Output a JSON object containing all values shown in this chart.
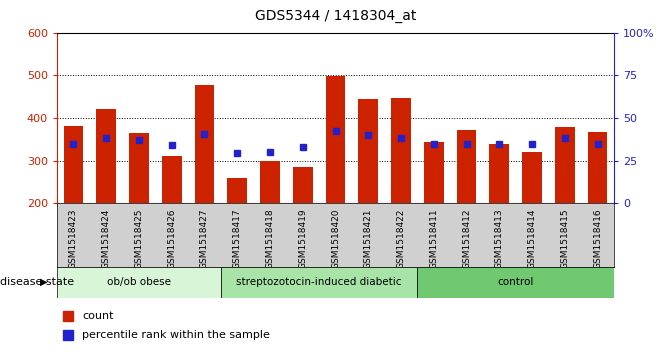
{
  "title": "GDS5344 / 1418304_at",
  "samples": [
    "GSM1518423",
    "GSM1518424",
    "GSM1518425",
    "GSM1518426",
    "GSM1518427",
    "GSM1518417",
    "GSM1518418",
    "GSM1518419",
    "GSM1518420",
    "GSM1518421",
    "GSM1518422",
    "GSM1518411",
    "GSM1518412",
    "GSM1518413",
    "GSM1518414",
    "GSM1518415",
    "GSM1518416"
  ],
  "count_values": [
    382,
    420,
    365,
    312,
    478,
    260,
    298,
    284,
    498,
    445,
    448,
    343,
    372,
    340,
    320,
    378,
    367
  ],
  "percentile_values": [
    338,
    354,
    348,
    337,
    362,
    318,
    320,
    332,
    370,
    360,
    354,
    338,
    338,
    338,
    338,
    352,
    340
  ],
  "groups": [
    {
      "label": "ob/ob obese",
      "start": 0,
      "end": 5
    },
    {
      "label": "streptozotocin-induced diabetic",
      "start": 5,
      "end": 11
    },
    {
      "label": "control",
      "start": 11,
      "end": 17
    }
  ],
  "group_colors": [
    "#d8f5d8",
    "#a8e4a8",
    "#70c870"
  ],
  "ylim": [
    200,
    600
  ],
  "y2lim": [
    0,
    100
  ],
  "yticks": [
    200,
    300,
    400,
    500,
    600
  ],
  "y2ticks": [
    0,
    25,
    50,
    75,
    100
  ],
  "y2ticklabels": [
    "0",
    "25",
    "50",
    "75",
    "100%"
  ],
  "bar_color": "#cc2200",
  "percentile_color": "#2222cc",
  "plot_bg": "#ffffff",
  "xlabel_bg": "#d0d0d0",
  "disease_state_label": "disease state",
  "legend_count": "count",
  "legend_percentile": "percentile rank within the sample",
  "grid_levels": [
    300,
    400,
    500
  ],
  "bar_width": 0.6
}
